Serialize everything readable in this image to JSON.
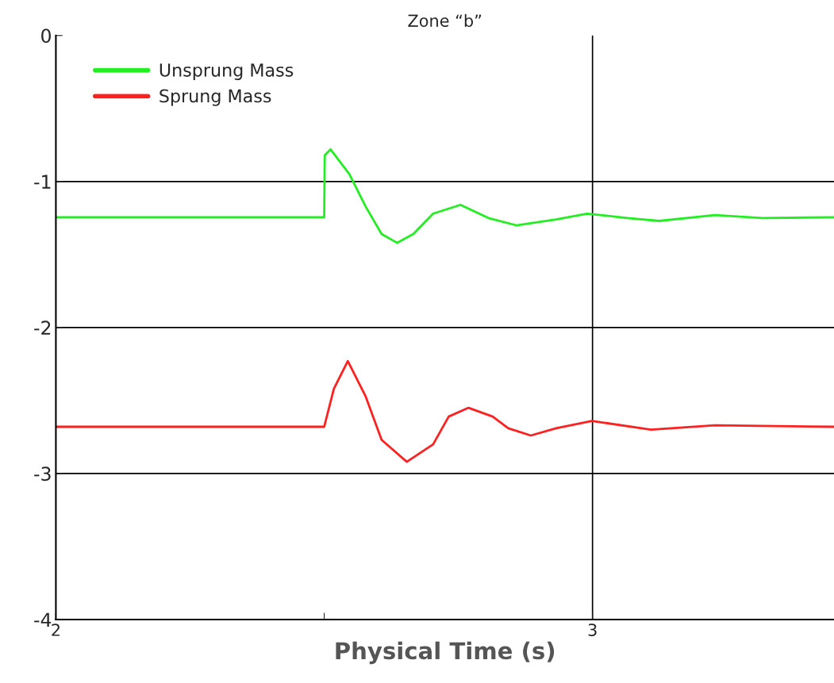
{
  "chart_data": {
    "type": "line",
    "title": "Zone “b”",
    "xlabel": "Physical Time (s)",
    "xlim": [
      2,
      3.45
    ],
    "xticks": [
      2,
      {
        "value": 2.5,
        "label": null
      },
      3
    ],
    "ylim": [
      -4,
      0
    ],
    "yticks": [
      -4,
      -3,
      -2,
      -1,
      0
    ],
    "grid": true,
    "legend": "top left",
    "marker": "none",
    "line_style": "solid",
    "series": [
      {
        "name": "Unsprung Mass",
        "color": "#22ee22",
        "x": [
          2,
          2.5,
          2.501,
          2.512,
          2.547,
          2.577,
          2.607,
          2.636,
          2.666,
          2.703,
          2.754,
          2.806,
          2.858,
          2.932,
          2.99,
          3.065,
          3.124,
          3.228,
          3.317,
          3.45
        ],
        "values": [
          -1.245,
          -1.245,
          -0.82,
          -0.78,
          -0.95,
          -1.17,
          -1.36,
          -1.42,
          -1.36,
          -1.22,
          -1.16,
          -1.25,
          -1.3,
          -1.26,
          -1.22,
          -1.25,
          -1.27,
          -1.23,
          -1.25,
          -1.245
        ]
      },
      {
        "name": "Sprung Mass",
        "color": "#ff2020",
        "x": [
          2,
          2.5,
          2.518,
          2.544,
          2.577,
          2.607,
          2.654,
          2.703,
          2.732,
          2.769,
          2.814,
          2.843,
          2.885,
          2.932,
          2.999,
          3.109,
          3.228,
          3.45
        ],
        "values": [
          -2.68,
          -2.68,
          -2.42,
          -2.23,
          -2.47,
          -2.77,
          -2.92,
          -2.8,
          -2.61,
          -2.55,
          -2.61,
          -2.69,
          -2.74,
          -2.69,
          -2.64,
          -2.7,
          -2.67,
          -2.68
        ]
      }
    ]
  }
}
